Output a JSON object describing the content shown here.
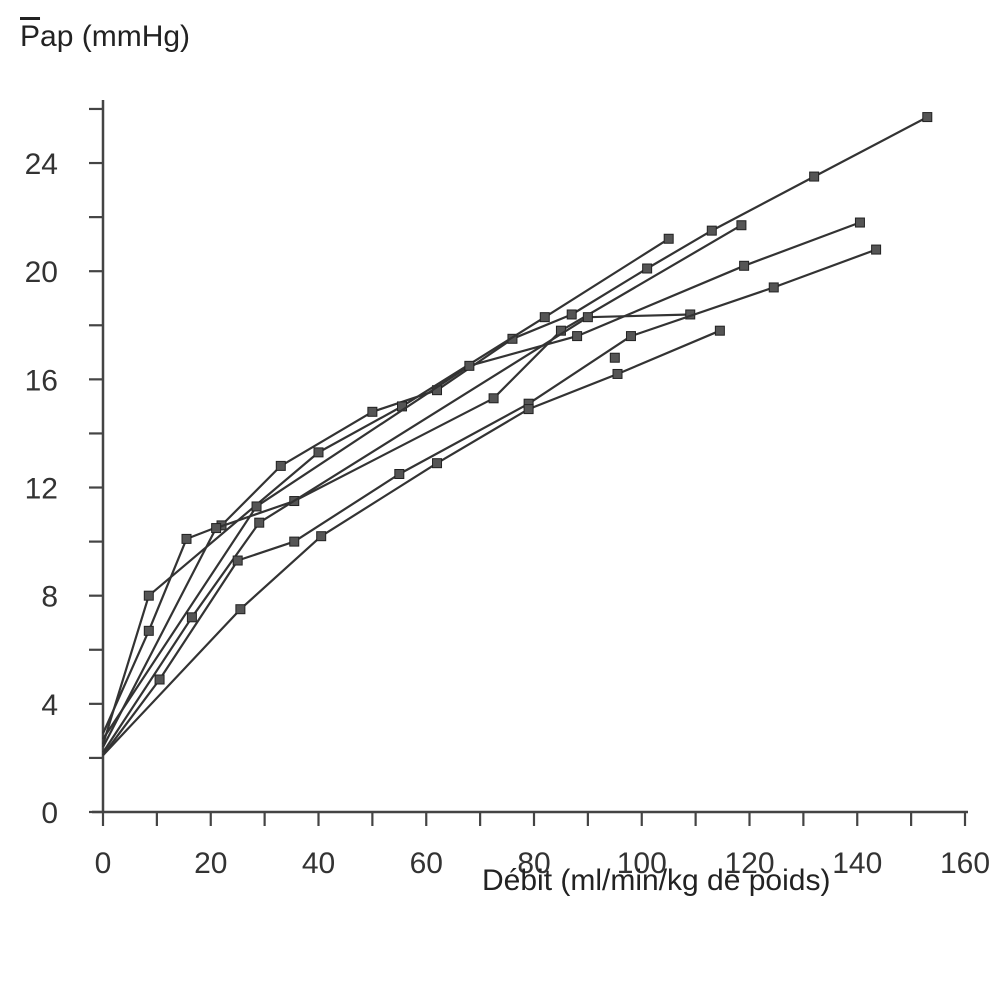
{
  "chart_data": {
    "type": "line",
    "title": "",
    "ylabel_symbol": "P",
    "ylabel_rest": "ap (mmHg)",
    "xlabel": "Débit (ml/min/kg de poids)",
    "xlim": [
      0,
      160
    ],
    "ylim": [
      0,
      26
    ],
    "x_ticks": [
      0,
      20,
      40,
      60,
      80,
      100,
      120,
      140,
      160
    ],
    "x_tick_labels": [
      "0",
      "20",
      "40",
      "60",
      "80",
      "100",
      "120",
      "140",
      "160"
    ],
    "y_ticks": [
      0,
      4,
      8,
      12,
      16,
      20,
      24
    ],
    "y_tick_labels": [
      "0",
      "4",
      "8",
      "12",
      "16",
      "20",
      "24"
    ],
    "grid": false,
    "series": [
      {
        "points": [
          [
            0,
            2.9
          ],
          [
            8.5,
            6.7
          ],
          [
            15.5,
            10.1
          ],
          [
            22,
            10.6
          ],
          [
            33,
            12.8
          ],
          [
            50,
            14.8
          ],
          [
            62,
            15.6
          ],
          [
            76,
            17.5
          ],
          [
            87,
            18.4
          ],
          [
            101,
            20.1
          ],
          [
            113,
            21.5
          ],
          [
            132,
            23.5
          ],
          [
            153,
            25.7
          ]
        ]
      },
      {
        "points": [
          [
            0,
            2.5
          ],
          [
            8.5,
            8.0
          ],
          [
            40,
            13.3
          ],
          [
            55.5,
            15.0
          ],
          [
            82,
            18.3
          ],
          [
            105,
            21.2
          ]
        ]
      },
      {
        "points": [
          [
            0,
            2.7
          ],
          [
            28.5,
            11.3
          ],
          [
            68,
            16.5
          ],
          [
            88,
            17.6
          ],
          [
            119,
            20.2
          ],
          [
            140.5,
            21.8
          ]
        ]
      },
      {
        "points": [
          [
            0,
            2.4
          ],
          [
            21,
            10.5
          ],
          [
            35.5,
            11.5
          ],
          [
            72.5,
            15.3
          ],
          [
            85,
            17.8
          ],
          [
            118.5,
            21.7
          ]
        ]
      },
      {
        "points": [
          [
            0,
            2.2
          ],
          [
            16.5,
            7.2
          ],
          [
            29,
            10.7
          ],
          [
            90,
            18.3
          ],
          [
            109,
            18.4
          ]
        ]
      },
      {
        "points": [
          [
            0,
            2.1
          ],
          [
            10.5,
            4.9
          ],
          [
            25,
            9.3
          ],
          [
            35.5,
            10.0
          ],
          [
            55,
            12.5
          ],
          [
            79,
            15.1
          ],
          [
            98,
            17.6
          ],
          [
            124.5,
            19.4
          ],
          [
            143.5,
            20.8
          ]
        ]
      },
      {
        "points": [
          [
            0,
            2.1
          ],
          [
            25.5,
            7.5
          ],
          [
            40.5,
            10.2
          ],
          [
            62,
            12.9
          ],
          [
            79,
            14.9
          ],
          [
            95.5,
            16.2
          ],
          [
            114.5,
            17.8
          ]
        ]
      },
      {
        "points": [
          [
            95,
            16.8
          ]
        ]
      }
    ]
  }
}
